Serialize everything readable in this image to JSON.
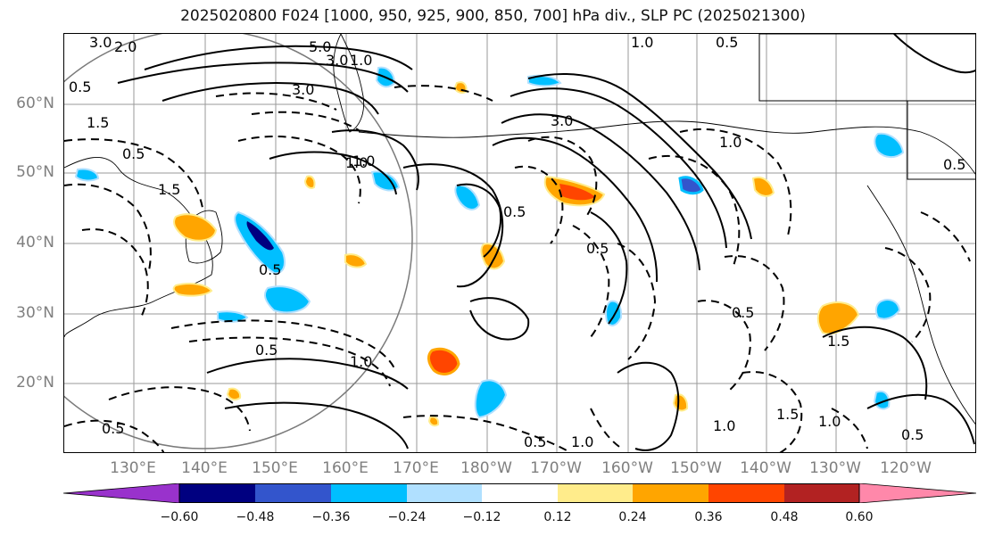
{
  "title": "2025020800 F024 [1000, 950, 925, 900, 850, 700] hPa div., SLP PC (2025021300)",
  "map": {
    "lat_labels": [
      "60°N",
      "50°N",
      "40°N",
      "30°N",
      "20°N"
    ],
    "lon_labels": [
      "130°E",
      "140°E",
      "150°E",
      "160°E",
      "170°E",
      "180°W",
      "170°W",
      "160°W",
      "150°W",
      "140°W",
      "130°W",
      "120°W"
    ],
    "contour_labels": [
      {
        "text": "3.0",
        "color": "#000000"
      },
      {
        "text": "2.0",
        "color": "#000000"
      },
      {
        "text": "5.0",
        "color": "#000000"
      },
      {
        "text": "3.0",
        "color": "#000000"
      },
      {
        "text": "1.0",
        "color": "#000000"
      },
      {
        "text": "0.5",
        "color": "#000000"
      },
      {
        "text": "3.0",
        "color": "#000000"
      },
      {
        "text": "1.5",
        "color": "#000000"
      },
      {
        "text": "0.5",
        "color": "#000000"
      },
      {
        "text": "3.0",
        "color": "#000000"
      },
      {
        "text": "1.0",
        "color": "#000000"
      },
      {
        "text": "0.5",
        "color": "#000000"
      },
      {
        "text": "1.0",
        "color": "#000000"
      },
      {
        "text": "0.5",
        "color": "#000000"
      },
      {
        "text": "1.5",
        "color": "#000000"
      },
      {
        "text": "0.5",
        "color": "#000000"
      },
      {
        "text": "1.0",
        "color": "#000000"
      },
      {
        "text": "0.5",
        "color": "#000000"
      },
      {
        "text": "0.5",
        "color": "#000000"
      },
      {
        "text": "0.5",
        "color": "#000000"
      },
      {
        "text": "1.0",
        "color": "#000000"
      },
      {
        "text": "0.5",
        "color": "#000000"
      },
      {
        "text": "1.5",
        "color": "#000000"
      },
      {
        "text": "1.0",
        "color": "#000000"
      },
      {
        "text": "0.5",
        "color": "#000000"
      },
      {
        "text": "1.5",
        "color": "#000000"
      },
      {
        "text": "1.0",
        "color": "#000000"
      },
      {
        "text": "0.5",
        "color": "#000000"
      },
      {
        "text": "0.5",
        "color": "#000000"
      },
      {
        "text": "1.0",
        "color": "#000000"
      },
      {
        "text": "1.0",
        "color": "#000000"
      }
    ],
    "divergence_colors": {
      "negative_strong": "#000080",
      "negative_medium": "#3355cc",
      "negative": "#00bfff",
      "negative_weak": "#b0e0ff",
      "positive_weak": "#ffec8b",
      "positive": "#ffa500",
      "positive_medium": "#ff4500",
      "positive_strong": "#b22222"
    }
  },
  "colorbar": {
    "ticks": [
      "−0.60",
      "−0.48",
      "−0.36",
      "−0.24",
      "−0.12",
      "0.12",
      "0.24",
      "0.36",
      "0.48",
      "0.60"
    ],
    "colors": [
      "#9932cc",
      "#000080",
      "#3355cc",
      "#00bfff",
      "#b0e0ff",
      "#ffffff",
      "#ffec8b",
      "#ffa500",
      "#ff4500",
      "#b22222",
      "#ff88aa"
    ]
  }
}
